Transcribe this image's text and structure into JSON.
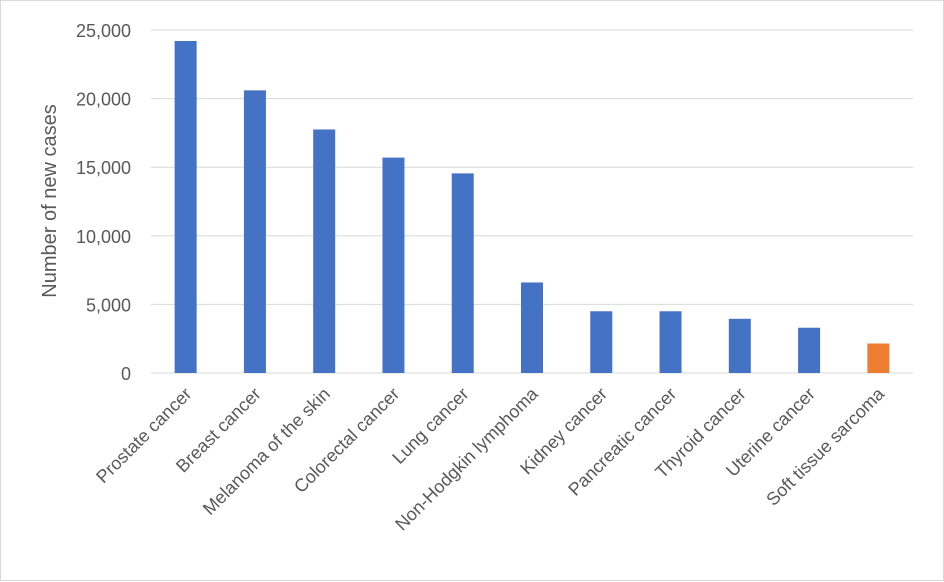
{
  "chart_data": {
    "type": "bar",
    "categories": [
      "Prostate cancer",
      "Breast cancer",
      "Melanoma of the skin",
      "Colorectal cancer",
      "Lung cancer",
      "Non-Hodgkin lymphoma",
      "Kidney cancer",
      "Pancreatic cancer",
      "Thyroid cancer",
      "Uterine cancer",
      "Soft tissue sarcoma"
    ],
    "values": [
      24200,
      20600,
      17750,
      15700,
      14550,
      6600,
      4500,
      4500,
      3950,
      3300,
      2150
    ],
    "ylabel": "Number of new cases",
    "ylim": [
      0,
      25000
    ],
    "yticks": [
      "0",
      "5,000",
      "10,000",
      "15,000",
      "20,000",
      "25,000"
    ],
    "ytick_values": [
      0,
      5000,
      10000,
      15000,
      20000,
      25000
    ],
    "grid": true,
    "colors": {
      "default_bar": "#4472c4",
      "highlight_bar": "#ed7d31",
      "highlight_category": "Soft tissue sarcoma",
      "gridline": "#d9d9d9",
      "text": "#595959"
    }
  }
}
